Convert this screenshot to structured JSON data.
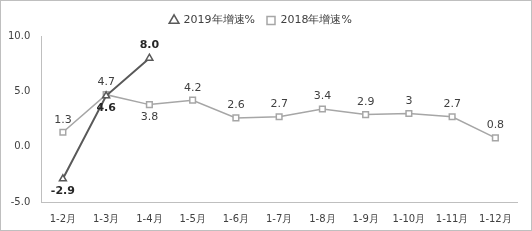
{
  "chart_data": {
    "type": "line",
    "categories": [
      "1-2月",
      "1-3月",
      "1-4月",
      "1-5月",
      "1-6月",
      "1-7月",
      "1-8月",
      "1-9月",
      "1-10月",
      "1-11月",
      "1-12月"
    ],
    "series": [
      {
        "name": "2019年增速%",
        "color": "#595959",
        "marker": "triangle",
        "values": [
          -2.9,
          4.6,
          8,
          null,
          null,
          null,
          null,
          null,
          null,
          null,
          null
        ],
        "value_labels": [
          "-2.9",
          "4.6",
          "8.0",
          null,
          null,
          null,
          null,
          null,
          null,
          null,
          null
        ]
      },
      {
        "name": "2018年增速%",
        "color": "#a6a6a6",
        "marker": "square",
        "values": [
          1.3,
          4.7,
          3.8,
          4.2,
          2.6,
          2.7,
          3.4,
          2.9,
          3,
          2.7,
          0.8
        ]
      }
    ],
    "ylim": [
      -5,
      10
    ],
    "yticks": [
      {
        "value": -5,
        "label": "-5.0"
      },
      {
        "value": 0,
        "label": "0.0"
      },
      {
        "value": 5,
        "label": "5.0"
      },
      {
        "value": 10,
        "label": "10.0"
      }
    ],
    "grid": false,
    "legend": "top",
    "data_labels": true
  }
}
